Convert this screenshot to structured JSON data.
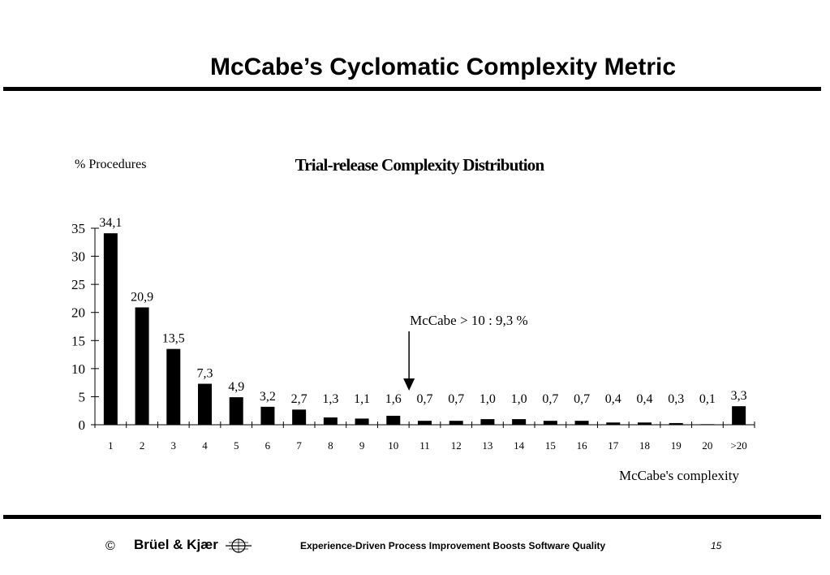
{
  "slide": {
    "title": "McCabe’s Cyclomatic Complexity Metric"
  },
  "footer": {
    "copyright": "©",
    "brand": "Brüel & Kjær",
    "text": "Experience-Driven Process Improvement Boosts Software Quality",
    "page": "15"
  },
  "chart_data": {
    "type": "bar",
    "title": "Trial-release Complexity Distribution",
    "ylabel": "% Procedures",
    "xlabel": "McCabe's complexity",
    "categories": [
      "1",
      "2",
      "3",
      "4",
      "5",
      "6",
      "7",
      "8",
      "9",
      "10",
      "11",
      "12",
      "13",
      "14",
      "15",
      "16",
      "17",
      "18",
      "19",
      "20",
      ">20"
    ],
    "values": [
      34.1,
      20.9,
      13.5,
      7.3,
      4.9,
      3.2,
      2.7,
      1.3,
      1.1,
      1.6,
      0.7,
      0.7,
      1.0,
      1.0,
      0.7,
      0.7,
      0.4,
      0.4,
      0.3,
      0.1,
      3.3
    ],
    "data_labels": [
      "34,1",
      "20,9",
      "13,5",
      "7,3",
      "4,9",
      "3,2",
      "2,7",
      "1,3",
      "1,1",
      "1,6",
      "0,7",
      "0,7",
      "1,0",
      "1,0",
      "0,7",
      "0,7",
      "0,4",
      "0,4",
      "0,3",
      "0,1",
      "3,3"
    ],
    "yticks": [
      "0",
      "5",
      "10",
      "15",
      "20",
      "25",
      "30",
      "35"
    ],
    "ylim": [
      0,
      35
    ],
    "grid": false,
    "legend": "none",
    "bar_color": "#000000",
    "annotation": {
      "text": "McCabe > 10 : 9,3 %",
      "category": "10",
      "arrow": "down"
    }
  }
}
